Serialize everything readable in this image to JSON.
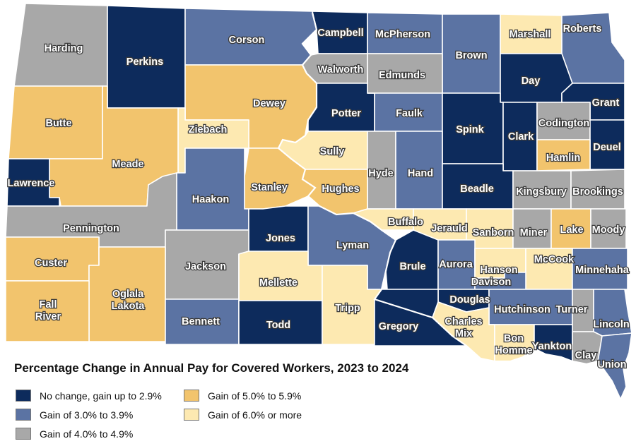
{
  "title": "Percentage Change in Annual Pay for Covered Workers, 2023 to 2024",
  "colors": {
    "c1": "#0d2b5c",
    "c2": "#5b73a3",
    "c3": "#a8a8a8",
    "c4": "#f2c46d",
    "c5": "#fde9b1"
  },
  "legend": [
    {
      "key": "c1",
      "label": "No change, gain up to 2.9%"
    },
    {
      "key": "c2",
      "label": "Gain of 3.0% to 3.9%"
    },
    {
      "key": "c3",
      "label": "Gain of 4.0% to 4.9%"
    },
    {
      "key": "c4",
      "label": "Gain of 5.0% to 5.9%"
    },
    {
      "key": "c5",
      "label": "Gain of 6.0% or more"
    }
  ],
  "counties": [
    {
      "name": "Harding",
      "cls": "c3"
    },
    {
      "name": "Perkins",
      "cls": "c1"
    },
    {
      "name": "Corson",
      "cls": "c2"
    },
    {
      "name": "Campbell",
      "cls": "c1"
    },
    {
      "name": "McPherson",
      "cls": "c2"
    },
    {
      "name": "Brown",
      "cls": "c2"
    },
    {
      "name": "Marshall",
      "cls": "c5"
    },
    {
      "name": "Roberts",
      "cls": "c2"
    },
    {
      "name": "Walworth",
      "cls": "c3"
    },
    {
      "name": "Edmunds",
      "cls": "c3"
    },
    {
      "name": "Day",
      "cls": "c1"
    },
    {
      "name": "Grant",
      "cls": "c1"
    },
    {
      "name": "Butte",
      "cls": "c4"
    },
    {
      "name": "Dewey",
      "cls": "c4"
    },
    {
      "name": "Potter",
      "cls": "c1"
    },
    {
      "name": "Faulk",
      "cls": "c2"
    },
    {
      "name": "Spink",
      "cls": "c1"
    },
    {
      "name": "Clark",
      "cls": "c1"
    },
    {
      "name": "Codington",
      "cls": "c3"
    },
    {
      "name": "Ziebach",
      "cls": "c5"
    },
    {
      "name": "Deuel",
      "cls": "c1"
    },
    {
      "name": "Hamlin",
      "cls": "c4"
    },
    {
      "name": "Meade",
      "cls": "c4"
    },
    {
      "name": "Sully",
      "cls": "c5"
    },
    {
      "name": "Hyde",
      "cls": "c3"
    },
    {
      "name": "Hand",
      "cls": "c2"
    },
    {
      "name": "Lawrence",
      "cls": "c1"
    },
    {
      "name": "Stanley",
      "cls": "c4"
    },
    {
      "name": "Hughes",
      "cls": "c4"
    },
    {
      "name": "Beadle",
      "cls": "c1"
    },
    {
      "name": "Kingsbury",
      "cls": "c3"
    },
    {
      "name": "Brookings",
      "cls": "c3"
    },
    {
      "name": "Haakon",
      "cls": "c2"
    },
    {
      "name": "Pennington",
      "cls": "c3"
    },
    {
      "name": "Buffalo",
      "cls": "c5"
    },
    {
      "name": "Jerauld",
      "cls": "c5"
    },
    {
      "name": "Sanborn",
      "cls": "c5"
    },
    {
      "name": "Miner",
      "cls": "c3"
    },
    {
      "name": "Lake",
      "cls": "c4"
    },
    {
      "name": "Moody",
      "cls": "c3"
    },
    {
      "name": "Jones",
      "cls": "c1"
    },
    {
      "name": "Lyman",
      "cls": "c2"
    },
    {
      "name": "Custer",
      "cls": "c4"
    },
    {
      "name": "Brule",
      "cls": "c1"
    },
    {
      "name": "Aurora",
      "cls": "c2"
    },
    {
      "name": "Hanson",
      "cls": "c5"
    },
    {
      "name": "McCook",
      "cls": "c5"
    },
    {
      "name": "Minnehaha",
      "cls": "c2"
    },
    {
      "name": "Jackson",
      "cls": "c3"
    },
    {
      "name": "Mellette",
      "cls": "c5"
    },
    {
      "name": "Davison",
      "cls": "c2"
    },
    {
      "name": "Oglala Lakota",
      "cls": "c4"
    },
    {
      "name": "Fall River",
      "cls": "c4"
    },
    {
      "name": "Douglas",
      "cls": "c1"
    },
    {
      "name": "Hutchinson",
      "cls": "c2"
    },
    {
      "name": "Turner",
      "cls": "c3"
    },
    {
      "name": "Lincoln",
      "cls": "c2"
    },
    {
      "name": "Bennett",
      "cls": "c2"
    },
    {
      "name": "Todd",
      "cls": "c1"
    },
    {
      "name": "Tripp",
      "cls": "c5"
    },
    {
      "name": "Gregory",
      "cls": "c1"
    },
    {
      "name": "Charles Mix",
      "cls": "c5"
    },
    {
      "name": "Bon Homme",
      "cls": "c5"
    },
    {
      "name": "Yankton",
      "cls": "c1"
    },
    {
      "name": "Clay",
      "cls": "c3"
    },
    {
      "name": "Union",
      "cls": "c2"
    }
  ]
}
